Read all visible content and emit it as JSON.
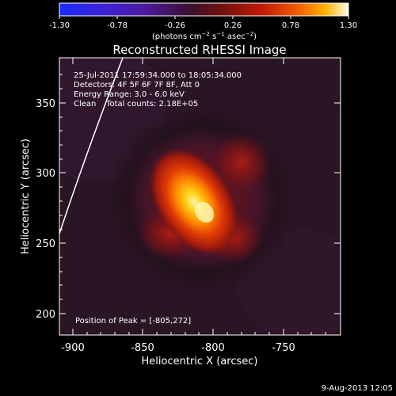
{
  "colorbar": {
    "ticks": [
      "-1.30",
      "-0.78",
      "-0.26",
      "0.26",
      "0.78",
      "1.30"
    ],
    "label_prefix": "(photons cm",
    "label_exp1": "−2",
    "label_mid": " s",
    "label_exp2": "−1",
    "label_mid2": " asec",
    "label_exp3": "−2",
    "label_suffix": ")"
  },
  "title": "Reconstructed RHESSI Image",
  "info": {
    "line1": "25-Jul-2011 17:59:34.000 to 18:05:34.000",
    "line2": "Detectors: 4F 5F 6F 7F 8F, Att 0",
    "line3": "Energy Range: 3.0 - 6.0 keV",
    "line4": "Clean    Total counts: 2.18E+05"
  },
  "peak_label": "Position of Peak = [-805,272]",
  "axes": {
    "xlabel": "Heliocentric X (arcsec)",
    "ylabel": "Heliocentric Y (arcsec)",
    "xticks": [
      "-900",
      "-850",
      "-800",
      "-750"
    ],
    "yticks": [
      "350",
      "300",
      "250",
      "200"
    ]
  },
  "footer_date": "9-Aug-2013 12:05",
  "colors": {
    "background": "#000000",
    "map_background": "#2a1525",
    "peak": "#fff6b0"
  }
}
